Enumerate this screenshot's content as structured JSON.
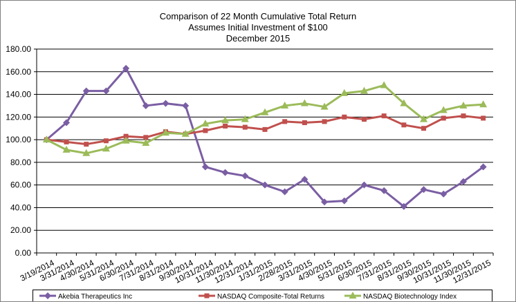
{
  "chart_data": {
    "type": "line",
    "title": [
      "Comparison  of 22 Month Cumulative  Total  Return",
      "Assumes Initial Investment  of $100",
      "December  2015"
    ],
    "xlabel": "",
    "ylabel": "",
    "ylim": [
      0,
      180
    ],
    "y_ticks": [
      "0.00",
      "20.00",
      "40.00",
      "60.00",
      "80.00",
      "100.00",
      "120.00",
      "140.00",
      "160.00",
      "180.00"
    ],
    "grid": true,
    "legend_position": "bottom",
    "categories": [
      "3/19/2014",
      "3/31/2014",
      "4/30/2014",
      "5/31/2014",
      "6/30/2014",
      "7/31/2014",
      "8/31/2014",
      "9/30/2014",
      "10/31/2014",
      "11/30/2014",
      "12/31/2014",
      "1/31/2015",
      "2/28/2015",
      "3/31/2015",
      "4/30/2015",
      "5/31/2015",
      "6/30/2015",
      "7/31/2015",
      "8/31/2015",
      "9/30/2015",
      "10/31/2015",
      "11/30/2015",
      "12/31/2015"
    ],
    "series": [
      {
        "name": "Akebia Therapeutics Inc",
        "color": "#7a5ea3",
        "marker": "diamond",
        "values": [
          100,
          115,
          143,
          143,
          163,
          130,
          132,
          130,
          76,
          71,
          68,
          60,
          54,
          65,
          45,
          46,
          60,
          55,
          41,
          56,
          52,
          63,
          76
        ]
      },
      {
        "name": "NASDAQ Composite-Total Returns",
        "color": "#c0504d",
        "marker": "square",
        "values": [
          100,
          98,
          96,
          99,
          103,
          102,
          107,
          105,
          108,
          112,
          111,
          109,
          116,
          115,
          116,
          120,
          118,
          121,
          113,
          110,
          119,
          121,
          119
        ]
      },
      {
        "name": "NASDAQ Biotechnology Index",
        "color": "#9bbb59",
        "marker": "triangle",
        "values": [
          100,
          91,
          88,
          92,
          99,
          97,
          106,
          105,
          114,
          117,
          118,
          124,
          130,
          132,
          129,
          141,
          143,
          148,
          132,
          118,
          126,
          130,
          131
        ]
      }
    ]
  }
}
